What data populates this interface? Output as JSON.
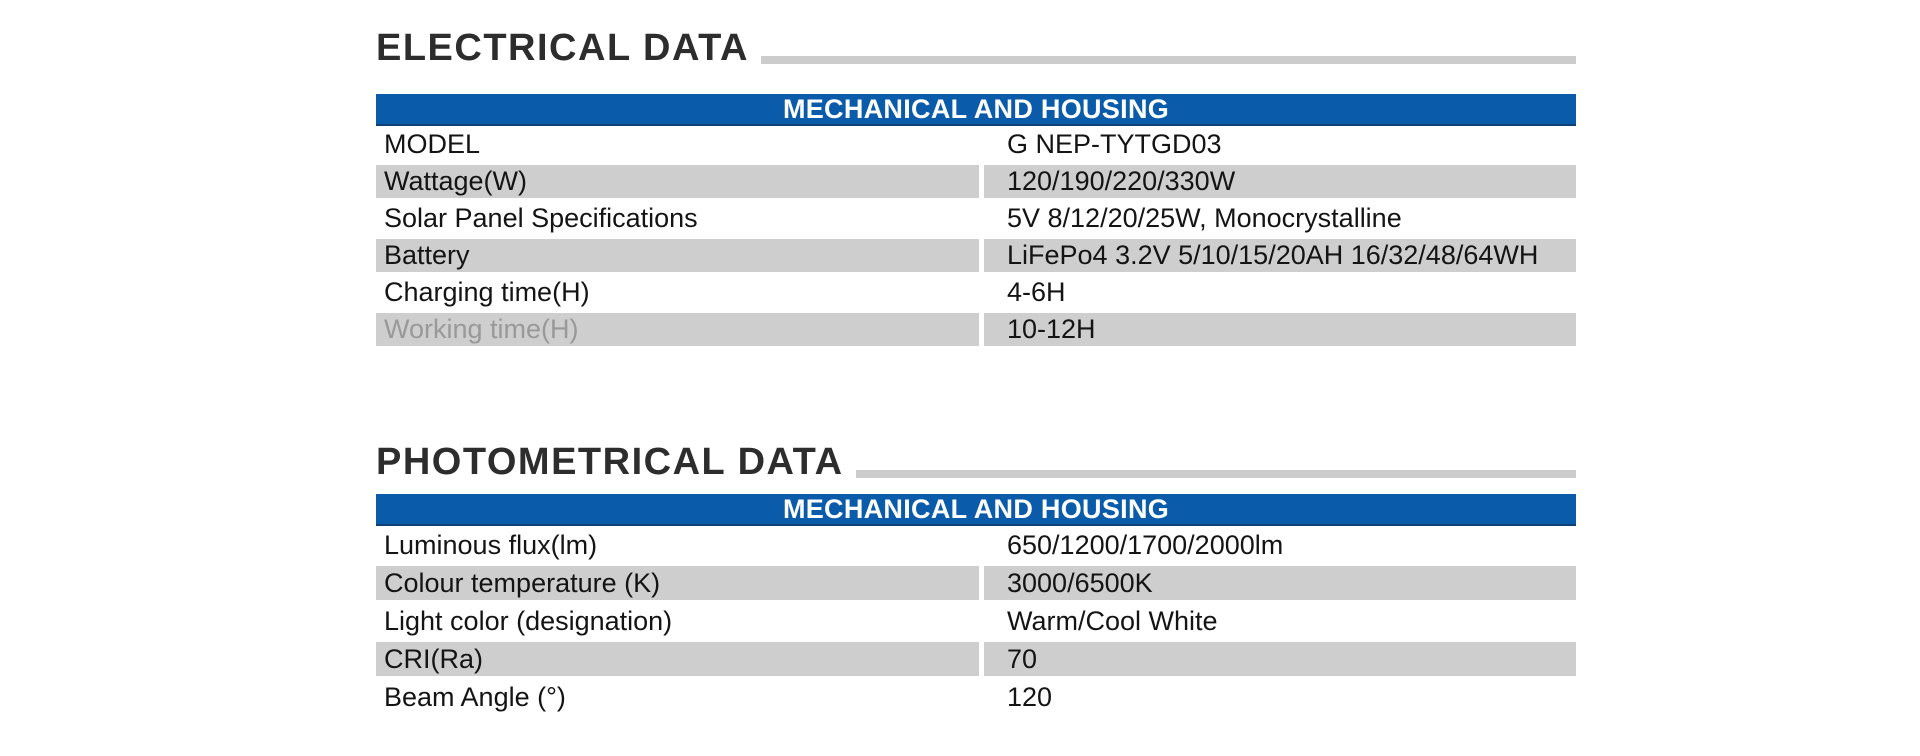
{
  "colors": {
    "accent_blue": "#0a5cab",
    "blue_border": "#0c4276",
    "row_shade_gray": "#cecece",
    "title_line_gray": "#cccccc",
    "title_text": "#2d2d2d",
    "body_text": "#141414",
    "muted_label_text": "#999999",
    "header_text": "#ffffff"
  },
  "sections": [
    {
      "title": "ELECTRICAL DATA",
      "table_header": "MECHANICAL AND HOUSING",
      "rows": [
        {
          "label": "MODEL",
          "value": "G NEP-TYTGD03"
        },
        {
          "label": "Wattage(W)",
          "value": "120/190/220/330W"
        },
        {
          "label": "Solar Panel Specifications",
          "value": "5V 8/12/20/25W, Monocrystalline"
        },
        {
          "label": "Battery",
          "value": "LiFePo4 3.2V 5/10/15/20AH 16/32/48/64WH"
        },
        {
          "label": "Charging time(H)",
          "value": "4-6H"
        },
        {
          "label": "Working time(H)",
          "value": "10-12H"
        }
      ]
    },
    {
      "title": "PHOTOMETRICAL DATA",
      "table_header": "MECHANICAL AND HOUSING",
      "rows": [
        {
          "label": "Luminous flux(lm)",
          "value": "650/1200/1700/2000lm"
        },
        {
          "label": "Colour temperature (K)",
          "value": "3000/6500K"
        },
        {
          "label": "Light color (designation)",
          "value": "Warm/Cool White"
        },
        {
          "label": "CRI(Ra)",
          "value": "70"
        },
        {
          "label": "Beam Angle (°)",
          "value": "120"
        }
      ]
    }
  ]
}
